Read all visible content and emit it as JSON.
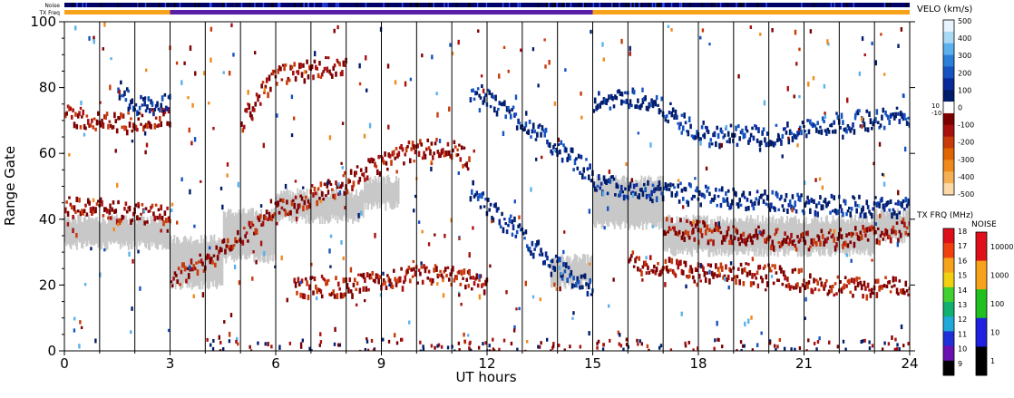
{
  "chart_data": {
    "type": "heatmap",
    "title": "",
    "xlabel": "UT hours",
    "ylabel": "Range Gate",
    "xlim": [
      0,
      24
    ],
    "ylim": [
      0,
      100
    ],
    "x_ticks": [
      "0",
      "3",
      "6",
      "9",
      "12",
      "15",
      "18",
      "21",
      "24"
    ],
    "y_ticks": [
      "0",
      "20",
      "40",
      "60",
      "80",
      "100"
    ],
    "scan_boundaries_ut": [
      0,
      1,
      2,
      3,
      4,
      5,
      6,
      7,
      8,
      9,
      10,
      11,
      12,
      13,
      14,
      15,
      16,
      17,
      18,
      19,
      20,
      21,
      22,
      23,
      24
    ],
    "colors": {
      "ground_scatter": "#c8c8c8",
      "noise_strip_bg": "#000066",
      "txfreq_low": "#f7a21b",
      "txfreq_high": "#5a1fa8"
    },
    "top_strips": {
      "noise_label": "Noise",
      "txfreq_label": "TX Freq",
      "txfreq_segments": [
        {
          "start": 0,
          "end": 3,
          "freq_band": "orange"
        },
        {
          "start": 3,
          "end": 15,
          "freq_band": "purple"
        },
        {
          "start": 15,
          "end": 24,
          "freq_band": "orange"
        }
      ]
    },
    "ground_scatter_bands": [
      {
        "t0": 0,
        "t1": 3,
        "g0": 32,
        "g1": 40
      },
      {
        "t0": 3,
        "t1": 4.5,
        "g0": 20,
        "g1": 34
      },
      {
        "t0": 4.5,
        "t1": 6,
        "g0": 28,
        "g1": 42
      },
      {
        "t0": 6,
        "t1": 8.5,
        "g0": 40,
        "g1": 48
      },
      {
        "t0": 8.5,
        "t1": 9.5,
        "g0": 44,
        "g1": 52
      },
      {
        "t0": 13.8,
        "t1": 15,
        "g0": 20,
        "g1": 28
      },
      {
        "t0": 15,
        "t1": 17,
        "g0": 38,
        "g1": 52
      },
      {
        "t0": 17,
        "t1": 23,
        "g0": 30,
        "g1": 40
      },
      {
        "t0": 23,
        "t1": 24,
        "g0": 34,
        "g1": 42
      }
    ],
    "echo_tracks": [
      {
        "sign": "neg",
        "points": [
          [
            3.0,
            22
          ],
          [
            4.0,
            28
          ],
          [
            5.0,
            35
          ],
          [
            6.0,
            43
          ],
          [
            7.0,
            48
          ],
          [
            8.0,
            52
          ],
          [
            9.0,
            58
          ],
          [
            10.0,
            62
          ],
          [
            11.0,
            62
          ],
          [
            11.5,
            58
          ]
        ]
      },
      {
        "sign": "pos",
        "points": [
          [
            11.5,
            50
          ],
          [
            12.0,
            44
          ],
          [
            12.5,
            40
          ],
          [
            13.0,
            36
          ],
          [
            13.5,
            30
          ],
          [
            14.0,
            26
          ],
          [
            14.5,
            22
          ],
          [
            15.0,
            20
          ]
        ]
      },
      {
        "sign": "pos",
        "points": [
          [
            11.5,
            80
          ],
          [
            12.5,
            74
          ],
          [
            13.5,
            66
          ],
          [
            14.5,
            58
          ],
          [
            15.0,
            54
          ]
        ]
      },
      {
        "sign": "neg",
        "points": [
          [
            6.5,
            20
          ],
          [
            8.0,
            20
          ],
          [
            9.0,
            22
          ],
          [
            10.5,
            24
          ],
          [
            11.5,
            22
          ],
          [
            12.0,
            20
          ]
        ]
      },
      {
        "sign": "neg",
        "points": [
          [
            5.0,
            70
          ],
          [
            5.5,
            78
          ],
          [
            6.0,
            84
          ],
          [
            7.0,
            86
          ],
          [
            8.0,
            88
          ]
        ]
      },
      {
        "sign": "neg",
        "points": [
          [
            0.0,
            72
          ],
          [
            1.0,
            70
          ],
          [
            2.0,
            70
          ],
          [
            3.0,
            72
          ]
        ]
      },
      {
        "sign": "pos",
        "points": [
          [
            1.5,
            80
          ],
          [
            2.0,
            76
          ],
          [
            2.5,
            74
          ],
          [
            3.0,
            76
          ]
        ]
      },
      {
        "sign": "pos",
        "points": [
          [
            15.0,
            76
          ],
          [
            16.0,
            78
          ],
          [
            17.0,
            74
          ],
          [
            18.0,
            66
          ],
          [
            20.0,
            66
          ],
          [
            22.0,
            70
          ],
          [
            24.0,
            72
          ]
        ]
      },
      {
        "sign": "pos",
        "points": [
          [
            15.0,
            52
          ],
          [
            16.0,
            50
          ],
          [
            18.0,
            48
          ],
          [
            20.0,
            46
          ],
          [
            24.0,
            44
          ]
        ]
      },
      {
        "sign": "neg",
        "points": [
          [
            17.0,
            38
          ],
          [
            19.0,
            36
          ],
          [
            21.0,
            34
          ],
          [
            23.0,
            36
          ],
          [
            24.0,
            38
          ]
        ]
      },
      {
        "sign": "neg",
        "points": [
          [
            0.0,
            44
          ],
          [
            1.0,
            44
          ],
          [
            2.0,
            42
          ],
          [
            3.0,
            42
          ]
        ]
      },
      {
        "sign": "neg",
        "points": [
          [
            16.0,
            28
          ],
          [
            18.0,
            24
          ],
          [
            20.0,
            24
          ],
          [
            22.0,
            20
          ],
          [
            24.0,
            20
          ]
        ]
      }
    ],
    "velocity_colorbar": {
      "label": "VELO (km/s)",
      "ticks": [
        "500",
        "400",
        "300",
        "200",
        "100",
        "0",
        "-100",
        "-200",
        "-300",
        "-400",
        "-500"
      ],
      "inner_ticks": [
        "10",
        "-10"
      ],
      "colors": [
        "#e8f4ff",
        "#a9d8f5",
        "#5ab1ee",
        "#2a7fd8",
        "#1453c0",
        "#0a2a9a",
        "#001d6c",
        "#ffffff",
        "#7d0000",
        "#a81010",
        "#c83a0a",
        "#e06500",
        "#f08a1c",
        "#f5b055",
        "#fbd9a7"
      ]
    },
    "txfreq_colorbar": {
      "label": "TX FRQ (MHz)",
      "ticks": [
        "18",
        "17",
        "16",
        "15",
        "14",
        "13",
        "12",
        "11",
        "10",
        "9"
      ],
      "colors": [
        "#e0101a",
        "#f04010",
        "#f7a21b",
        "#f0d010",
        "#40d030",
        "#10b070",
        "#20a8d8",
        "#2030d8",
        "#6a10b0",
        "#000000"
      ]
    },
    "noise_colorbar": {
      "label": "NOISE",
      "ticks": [
        "10000",
        "1000",
        "100",
        "10",
        "1"
      ],
      "colors": [
        "#e0101a",
        "#f7a21b",
        "#20c020",
        "#2020e0",
        "#000000"
      ]
    }
  }
}
